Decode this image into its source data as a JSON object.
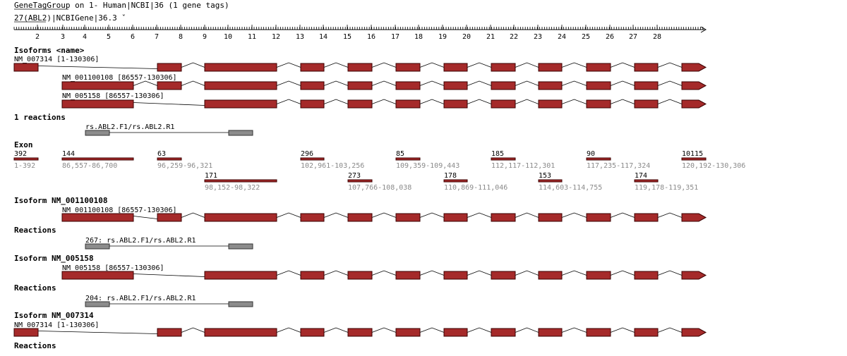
{
  "header": {
    "title": "GeneTagGroup on 1- Human|NCBI|36 (1 gene tags)",
    "gene_tag": "27(ABL2)|NCBIGene|36.3"
  },
  "ruler": {
    "labels": [
      "2",
      "3",
      "4",
      "5",
      "6",
      "7",
      "8",
      "9",
      "10",
      "11",
      "12",
      "13",
      "14",
      "15",
      "16",
      "17",
      "18",
      "19",
      "20",
      "21",
      "22",
      "23",
      "24",
      "25",
      "26",
      "27",
      "28"
    ]
  },
  "sections": {
    "isoforms_name": "Isoforms <name>",
    "reactions_count": "1 reactions",
    "exon": "Exon",
    "isoform_a": "Isoform NM_001100108",
    "reactions_a": "Reactions",
    "isoform_b": "Isoform NM_005158",
    "reactions_b": "Reactions",
    "isoform_c": "Isoform NM_007314",
    "reactions_c": "Reactions"
  },
  "isoforms": [
    {
      "label": "NM_007314 [1-130306]"
    },
    {
      "label": "NM_001100108 [86557-130306]"
    },
    {
      "label": "NM_005158 [86557-130306]"
    }
  ],
  "reaction": {
    "label": "rs.ABL2.F1/rs.ABL2.R1"
  },
  "exons_top": [
    {
      "length": "392",
      "range": "1-392"
    },
    {
      "length": "144",
      "range": "86,557-86,700"
    },
    {
      "length": "63",
      "range": "96,259-96,321"
    },
    {
      "length": "296",
      "range": "102,961-103,256"
    },
    {
      "length": "85",
      "range": "109,359-109,443"
    },
    {
      "length": "185",
      "range": "112,117-112,301"
    },
    {
      "length": "90",
      "range": "117,235-117,324"
    },
    {
      "length": "10115",
      "range": "120,192-130,306"
    }
  ],
  "exons_bottom": [
    {
      "length": "171",
      "range": "98,152-98,322"
    },
    {
      "length": "273",
      "range": "107,766-108,038"
    },
    {
      "length": "178",
      "range": "110,869-111,046"
    },
    {
      "length": "153",
      "range": "114,603-114,755"
    },
    {
      "length": "174",
      "range": "119,178-119,351"
    }
  ],
  "detail_a": {
    "isoform_label": "NM_001100108 [86557-130306]",
    "reaction_label": "267: rs.ABL2.F1/rs.ABL2.R1"
  },
  "detail_b": {
    "isoform_label": "NM_005158 [86557-130306]",
    "reaction_label": "204: rs.ABL2.F1/rs.ABL2.R1"
  },
  "detail_c": {
    "isoform_label": "NM_007314 [1-130306]"
  },
  "colors": {
    "exon": "#a52a2a",
    "primer": "#8c8c8c",
    "text_gray": "#8a8a8a"
  }
}
